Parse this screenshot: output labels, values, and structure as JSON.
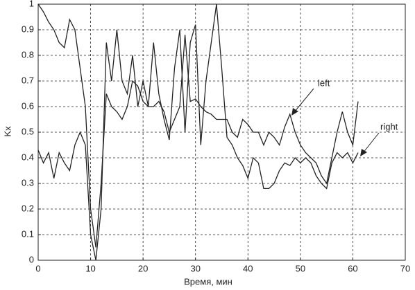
{
  "chart_data": {
    "type": "line",
    "xlabel": "Время, мин",
    "ylabel": "Kx",
    "x": [
      0,
      1,
      2,
      3,
      4,
      5,
      6,
      7,
      8,
      9,
      10,
      11,
      12,
      13,
      14,
      15,
      16,
      17,
      18,
      19,
      20,
      21,
      22,
      23,
      24,
      25,
      26,
      27,
      28,
      29,
      30,
      31,
      32,
      33,
      34,
      35,
      36,
      37,
      38,
      39,
      40,
      41,
      42,
      43,
      44,
      45,
      46,
      47,
      48,
      49,
      50,
      51,
      52,
      53,
      54,
      55,
      56,
      57,
      58,
      59,
      60,
      61
    ],
    "series": [
      {
        "name": "left",
        "color": "#222222",
        "values": [
          1.0,
          0.97,
          0.93,
          0.9,
          0.85,
          0.83,
          0.94,
          0.9,
          0.75,
          0.6,
          0.2,
          0.05,
          0.3,
          0.65,
          0.6,
          0.58,
          0.55,
          0.6,
          0.7,
          0.68,
          0.62,
          0.6,
          0.6,
          0.62,
          0.58,
          0.5,
          0.55,
          0.6,
          0.88,
          0.62,
          0.63,
          0.6,
          0.58,
          0.57,
          0.55,
          0.55,
          0.55,
          0.5,
          0.48,
          0.55,
          0.53,
          0.5,
          0.5,
          0.45,
          0.5,
          0.48,
          0.45,
          0.52,
          0.57,
          0.5,
          0.45,
          0.42,
          0.4,
          0.38,
          0.33,
          0.3,
          0.4,
          0.5,
          0.58,
          0.5,
          0.45,
          0.62
        ]
      },
      {
        "name": "right",
        "color": "#222222",
        "values": [
          0.43,
          0.38,
          0.42,
          0.32,
          0.42,
          0.38,
          0.35,
          0.45,
          0.5,
          0.45,
          0.1,
          0.0,
          0.2,
          0.85,
          0.7,
          0.9,
          0.7,
          0.65,
          0.8,
          0.6,
          0.7,
          0.6,
          0.85,
          0.65,
          0.55,
          0.47,
          0.75,
          0.9,
          0.5,
          0.85,
          0.92,
          0.45,
          0.7,
          0.85,
          1.0,
          0.75,
          0.48,
          0.45,
          0.4,
          0.37,
          0.32,
          0.4,
          0.38,
          0.28,
          0.28,
          0.3,
          0.35,
          0.38,
          0.37,
          0.4,
          0.38,
          0.4,
          0.38,
          0.33,
          0.3,
          0.28,
          0.38,
          0.42,
          0.4,
          0.42,
          0.38,
          0.42
        ]
      }
    ],
    "xlim": [
      0,
      70
    ],
    "xticks": [
      0,
      10,
      20,
      30,
      40,
      50,
      60,
      70
    ],
    "ylim": [
      0,
      1
    ],
    "yticks": [
      0,
      0.1,
      0.2,
      0.3,
      0.4,
      0.5,
      0.6,
      0.7,
      0.8,
      0.9,
      1
    ],
    "grid": true
  }
}
